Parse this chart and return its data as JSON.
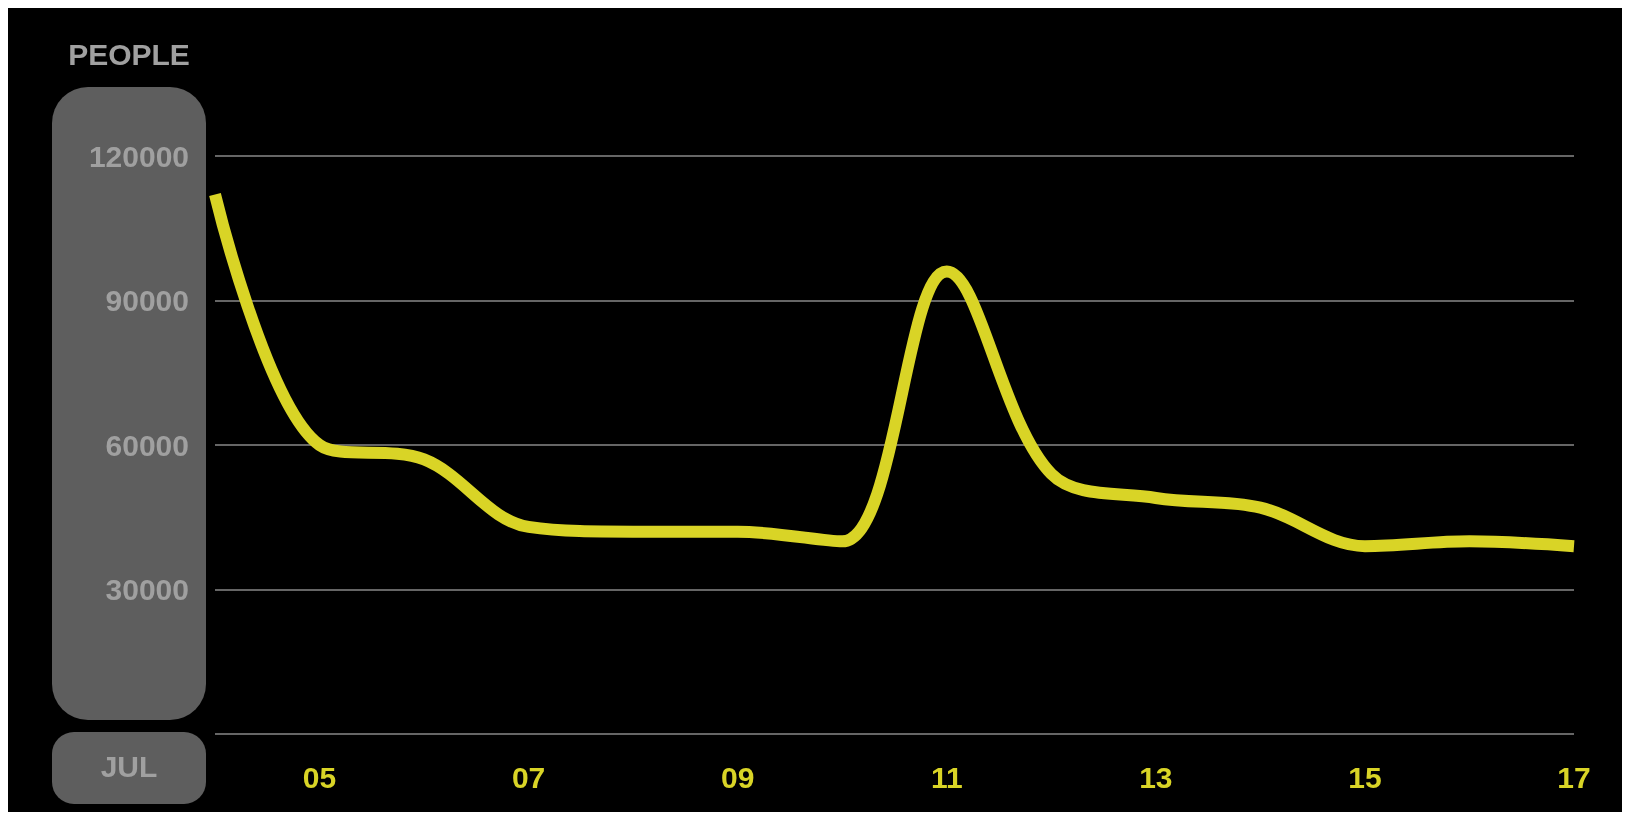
{
  "chart_data": {
    "type": "line",
    "xlabel": "JUL",
    "ylabel": "PEOPLE",
    "categories": [
      null,
      "05",
      null,
      "07",
      null,
      "09",
      null,
      "11",
      null,
      "13",
      null,
      "15",
      null,
      "17"
    ],
    "series": [
      {
        "color": "#d9d426",
        "values": [
          112000,
          60000,
          57000,
          43000,
          42000,
          42000,
          40000,
          96000,
          54000,
          49000,
          47000,
          39000,
          40000,
          39000
        ]
      }
    ],
    "ylim": [
      0,
      120000
    ],
    "yticks": [
      {
        "value": 0,
        "label": null
      },
      30000,
      60000,
      90000,
      120000
    ],
    "grid": "y",
    "marker": "none"
  }
}
